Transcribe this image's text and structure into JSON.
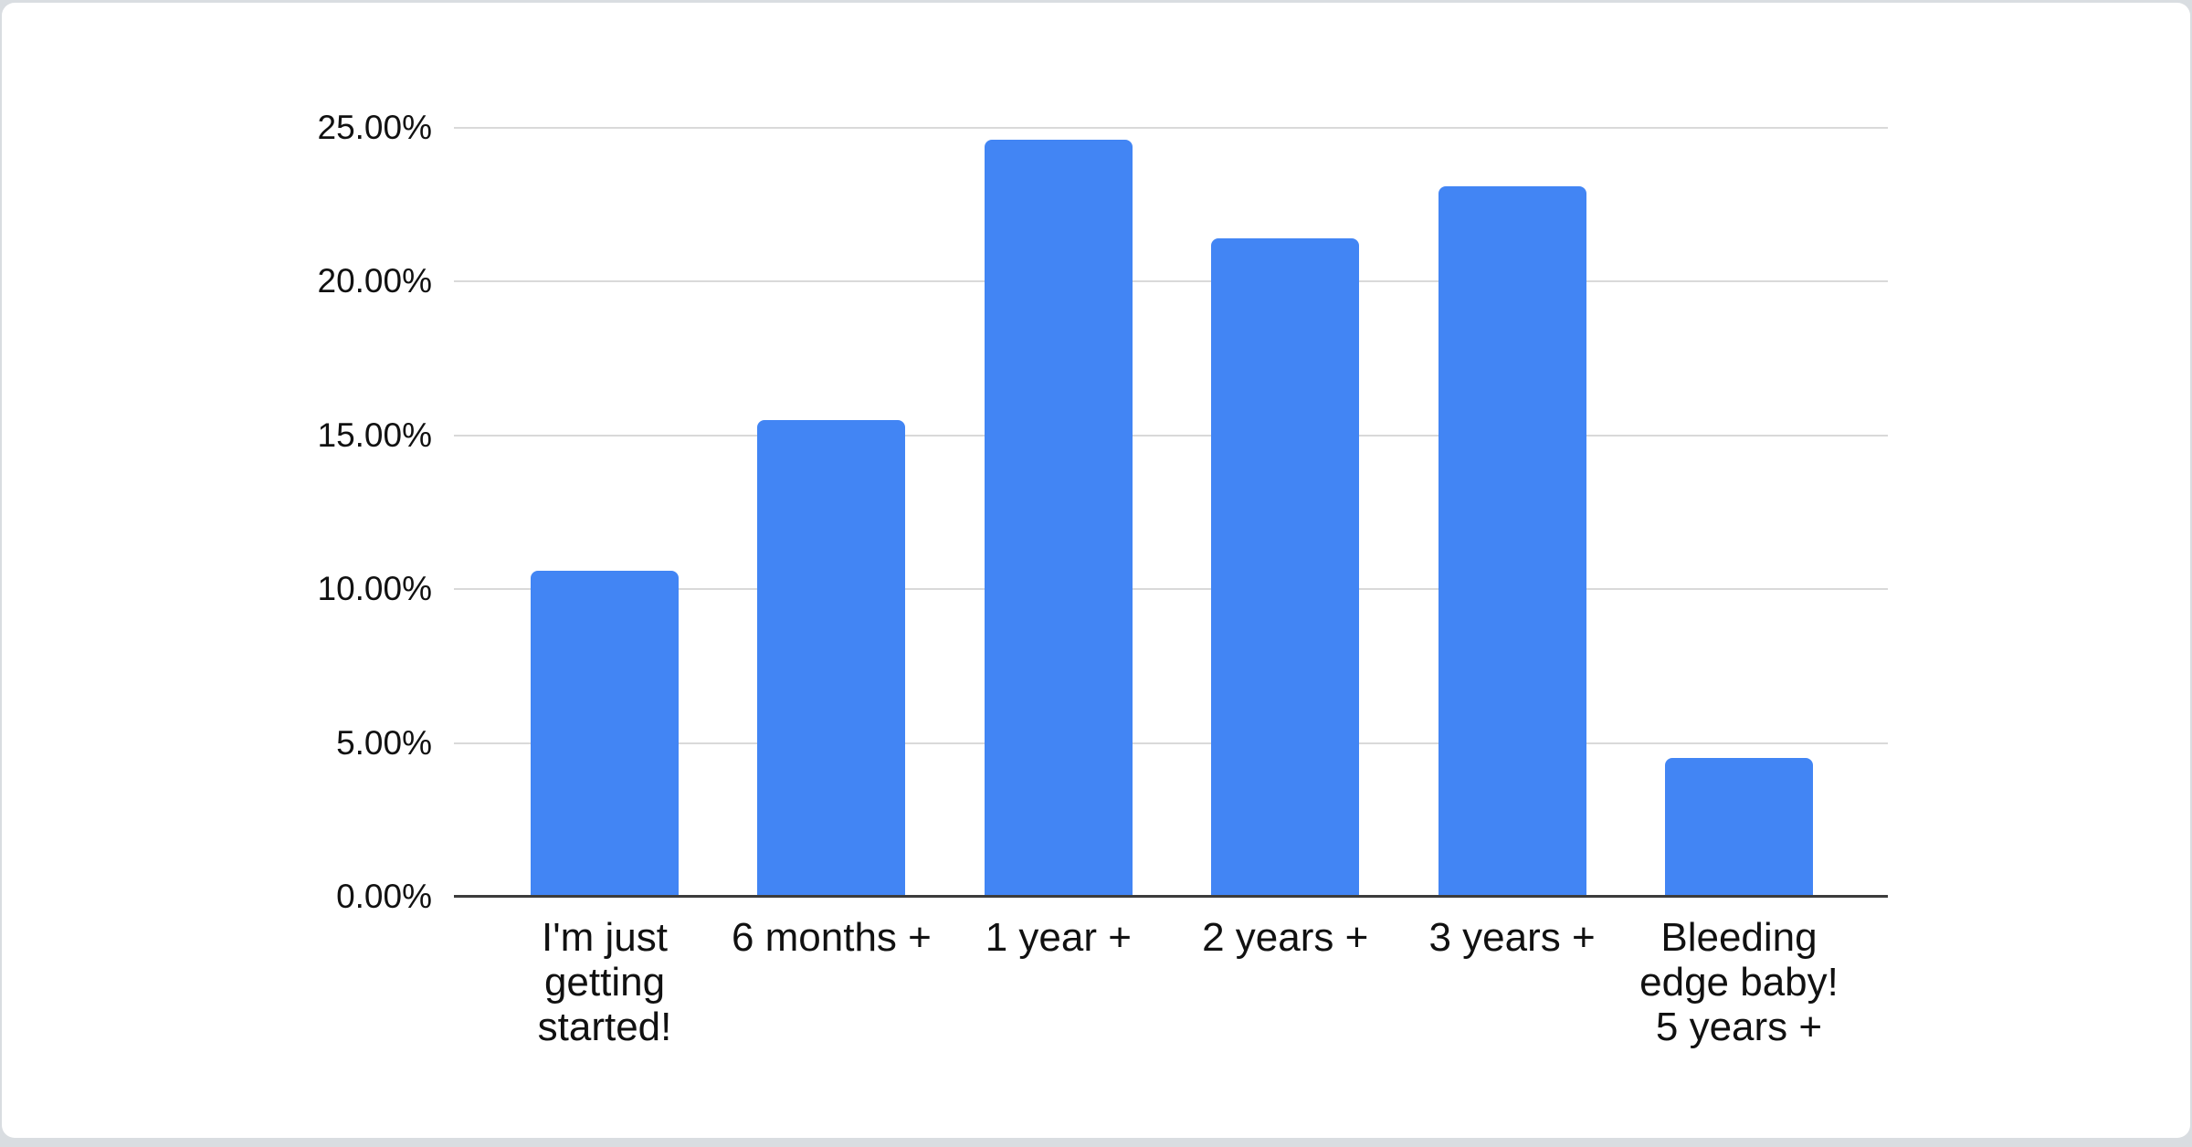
{
  "page": {
    "background_color": "#d9dde1",
    "card_color": "#ffffff"
  },
  "chart_data": {
    "type": "bar",
    "title": "",
    "categories": [
      "I'm just getting started!",
      "6 months +",
      "1 year +",
      "2 years +",
      "3 years +",
      "Bleeding edge baby! 5 years +"
    ],
    "values": [
      10.6,
      15.5,
      24.6,
      21.4,
      23.1,
      4.5
    ],
    "value_unit": "%",
    "ylim": [
      0,
      25
    ],
    "y_tick_values": [
      0,
      5,
      10,
      15,
      20,
      25
    ],
    "y_tick_labels": [
      "0.00%",
      "5.00%",
      "10.00%",
      "15.00%",
      "20.00%",
      "25.00%"
    ],
    "xlabel": "",
    "ylabel": "",
    "grid": true,
    "legend": "none",
    "bar_color": "#4285f4",
    "gridline_color": "#d9d9d9",
    "axis_line_color": "#3c3c3c",
    "label_color": "#111111"
  }
}
